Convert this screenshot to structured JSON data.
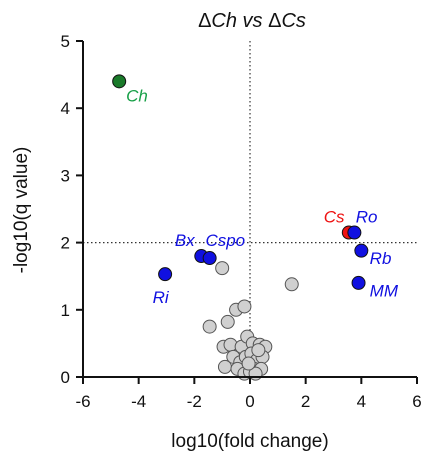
{
  "chart_data": {
    "type": "scatter",
    "title": {
      "parts": [
        "Δ",
        "Ch",
        " vs ",
        "Δ",
        "Cs"
      ],
      "italic": [
        false,
        true,
        true,
        false,
        true
      ]
    },
    "xlabel": "log10(fold change)",
    "ylabel": "-log10(q value)",
    "xlim": [
      -6,
      6
    ],
    "ylim": [
      0,
      5
    ],
    "xticks": [
      "-6",
      "-4",
      "-2",
      "0",
      "2",
      "4",
      "6"
    ],
    "yticks": [
      "0",
      "1",
      "2",
      "3",
      "4",
      "5"
    ],
    "reference_lines": {
      "x": 0,
      "y": 2,
      "style": "dotted"
    },
    "colors": {
      "grey": "#d0d0d0",
      "blue": "#1010e0",
      "green": "#1a7a2a",
      "red": "#ee1111",
      "green_label": "#18a048"
    },
    "highlighted": [
      {
        "label": "Ch",
        "x": -4.7,
        "y": 4.4,
        "color": "green"
      },
      {
        "label": "Cs",
        "x": 3.55,
        "y": 2.15,
        "color": "red"
      },
      {
        "label": "Ro",
        "x": 3.75,
        "y": 2.15,
        "color": "blue"
      },
      {
        "label": "Rb",
        "x": 4.0,
        "y": 1.88,
        "color": "blue"
      },
      {
        "label": "MM",
        "x": 3.9,
        "y": 1.4,
        "color": "blue"
      },
      {
        "label": "Bx",
        "x": -1.75,
        "y": 1.8,
        "color": "blue"
      },
      {
        "label": "Cspo",
        "x": -1.45,
        "y": 1.77,
        "color": "blue"
      },
      {
        "label": "Ri",
        "x": -3.05,
        "y": 1.53,
        "color": "blue"
      }
    ],
    "labels": [
      {
        "text": "Ch",
        "x": -4.45,
        "y": 4.1,
        "color": "green_label"
      },
      {
        "text": "Cs",
        "x": 2.65,
        "y": 2.3,
        "color": "red"
      },
      {
        "text": "Ro",
        "x": 3.8,
        "y": 2.3,
        "color": "blue"
      },
      {
        "text": "Rb",
        "x": 4.3,
        "y": 1.68,
        "color": "blue"
      },
      {
        "text": "MM",
        "x": 4.3,
        "y": 1.2,
        "color": "blue"
      },
      {
        "text": "Bx",
        "x": -2.7,
        "y": 1.95,
        "color": "blue"
      },
      {
        "text": "Cspo",
        "x": -1.6,
        "y": 1.95,
        "color": "blue"
      },
      {
        "text": "Ri",
        "x": -3.5,
        "y": 1.1,
        "color": "blue"
      }
    ],
    "grey_points": [
      [
        1.5,
        1.38
      ],
      [
        -1.0,
        1.62
      ],
      [
        -0.8,
        0.82
      ],
      [
        -0.5,
        1.0
      ],
      [
        -0.2,
        1.05
      ],
      [
        -1.45,
        0.75
      ],
      [
        -0.95,
        0.45
      ],
      [
        -0.7,
        0.48
      ],
      [
        -0.3,
        0.45
      ],
      [
        -0.1,
        0.6
      ],
      [
        0.1,
        0.5
      ],
      [
        0.35,
        0.48
      ],
      [
        0.55,
        0.45
      ],
      [
        -0.6,
        0.3
      ],
      [
        -0.35,
        0.22
      ],
      [
        -0.15,
        0.3
      ],
      [
        0.05,
        0.35
      ],
      [
        0.25,
        0.25
      ],
      [
        0.45,
        0.3
      ],
      [
        -0.9,
        0.15
      ],
      [
        -0.45,
        0.12
      ],
      [
        0.15,
        0.12
      ],
      [
        0.4,
        0.12
      ],
      [
        -0.2,
        0.05
      ],
      [
        0.0,
        0.08
      ],
      [
        0.2,
        0.05
      ],
      [
        -0.05,
        0.2
      ],
      [
        0.3,
        0.4
      ]
    ]
  }
}
